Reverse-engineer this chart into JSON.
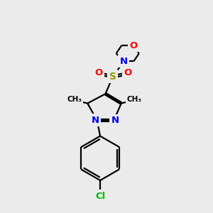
{
  "bg_color": "#ebebeb",
  "bond_color": "#000000",
  "N_color": "#0000ee",
  "O_color": "#ff0000",
  "S_color": "#999900",
  "Cl_color": "#00bb00",
  "line_width": 1.6,
  "dbl_sep": 0.055,
  "fig_w": 3.0,
  "fig_h": 3.0,
  "dpi": 100,
  "xlim": [
    0,
    10
  ],
  "ylim": [
    0,
    10
  ],
  "font_size": 9.5
}
